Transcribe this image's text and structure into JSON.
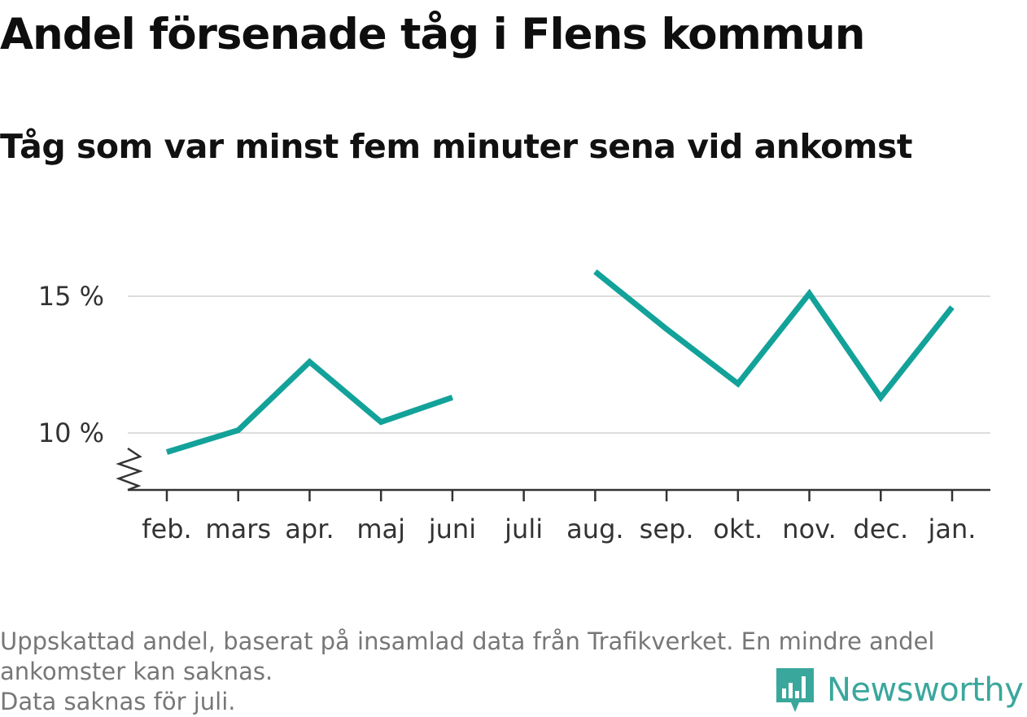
{
  "colors": {
    "line": "#13a299",
    "grid": "#dddddd",
    "axis": "#333333",
    "brand": "#3aa79c"
  },
  "chart_data": {
    "type": "line",
    "title": "Andel försenade tåg i Flens kommun",
    "subtitle": "Tåg som var minst fem minuter sena vid ankomst",
    "categories": [
      "feb.",
      "mars",
      "apr.",
      "maj",
      "juni",
      "juli",
      "aug.",
      "sep.",
      "okt.",
      "nov.",
      "dec.",
      "jan."
    ],
    "series": [
      {
        "values": [
          9.3,
          10.1,
          12.6,
          10.4,
          11.3,
          null,
          15.9,
          13.8,
          11.8,
          15.1,
          11.3,
          14.6
        ]
      }
    ],
    "yticks": [
      {
        "value": 10,
        "label": "10 %"
      },
      {
        "value": 15,
        "label": "15 %"
      }
    ],
    "ylim": [
      8,
      16.5
    ],
    "axis_break": true,
    "grid": true
  },
  "footer": {
    "line1": "Uppskattad andel, baserat på insamlad data från Trafikverket. En mindre andel",
    "line2": "ankomster kan saknas.",
    "line3": "Data saknas för juli."
  },
  "brand": {
    "name": "Newsworthy",
    "icon": "newsworthy-logo-icon"
  }
}
